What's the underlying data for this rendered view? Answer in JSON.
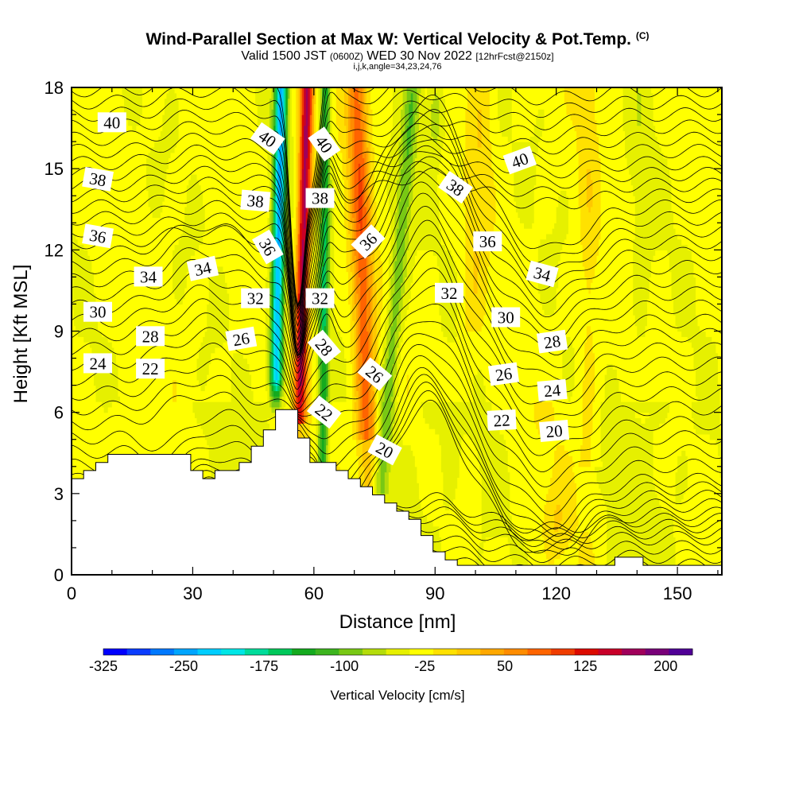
{
  "title": "Wind-Parallel Section at Max W: Vertical Velocity & Pot.Temp.",
  "title_tag": "(C)",
  "subtitle_pre": "Valid 1500 JST",
  "subtitle_utc": "(0600Z)",
  "subtitle_date": "WED 30 Nov 2022",
  "subtitle_fcst": "[12hrFcst@2150z]",
  "grid_info": "i,j,k,angle=34,23,24,76",
  "chart_data": {
    "type": "heatmap",
    "xlabel": "Distance [nm]",
    "ylabel": "Height [Kft MSL]",
    "xlim": [
      0,
      161
    ],
    "ylim": [
      0,
      18
    ],
    "x_ticks": [
      0,
      30,
      60,
      90,
      120,
      150
    ],
    "y_ticks": [
      0,
      3,
      6,
      9,
      12,
      15,
      18
    ],
    "colorbar": {
      "label": "Vertical Velocity [cm/s]",
      "min": -325,
      "max": 225,
      "step": 25,
      "tick_labels": [
        -325,
        -250,
        -175,
        -100,
        -25,
        50,
        125,
        200
      ],
      "colors": [
        "#0000ff",
        "#0a3cff",
        "#0078ff",
        "#00a5ff",
        "#00cdff",
        "#00e6e6",
        "#00dc9b",
        "#00c85a",
        "#14aa1e",
        "#3cb41e",
        "#78c814",
        "#b4dc0a",
        "#e6f000",
        "#ffff00",
        "#ffe100",
        "#ffc800",
        "#ffa800",
        "#ff8c00",
        "#ff6400",
        "#f03c00",
        "#dc0a00",
        "#c80028",
        "#a0005a",
        "#780078",
        "#500096"
      ]
    },
    "theta_labels": [
      {
        "x": 10,
        "y": 16.7,
        "v": "40",
        "rot": 0
      },
      {
        "x": 48.5,
        "y": 16.1,
        "v": "40",
        "rot": 35
      },
      {
        "x": 62.5,
        "y": 15.9,
        "v": "40",
        "rot": 55
      },
      {
        "x": 111,
        "y": 15.3,
        "v": "40",
        "rot": -20
      },
      {
        "x": 6.5,
        "y": 14.6,
        "v": "38",
        "rot": 10
      },
      {
        "x": 45.5,
        "y": 13.8,
        "v": "38",
        "rot": 5
      },
      {
        "x": 61.5,
        "y": 13.9,
        "v": "38",
        "rot": 0
      },
      {
        "x": 95,
        "y": 14.3,
        "v": "38",
        "rot": 35
      },
      {
        "x": 6.5,
        "y": 12.5,
        "v": "36",
        "rot": 10
      },
      {
        "x": 48.5,
        "y": 12.1,
        "v": "36",
        "rot": 60
      },
      {
        "x": 73.5,
        "y": 12.3,
        "v": "36",
        "rot": -45
      },
      {
        "x": 103,
        "y": 12.3,
        "v": "36",
        "rot": 0
      },
      {
        "x": 19,
        "y": 11.0,
        "v": "34",
        "rot": 0
      },
      {
        "x": 32.5,
        "y": 11.3,
        "v": "34",
        "rot": -12
      },
      {
        "x": 116.5,
        "y": 11.1,
        "v": "34",
        "rot": 15
      },
      {
        "x": 45.5,
        "y": 10.2,
        "v": "32",
        "rot": 0
      },
      {
        "x": 61.5,
        "y": 10.2,
        "v": "32",
        "rot": 0
      },
      {
        "x": 93.5,
        "y": 10.4,
        "v": "32",
        "rot": 0
      },
      {
        "x": 6.5,
        "y": 9.7,
        "v": "30",
        "rot": 0
      },
      {
        "x": 107.5,
        "y": 9.5,
        "v": "30",
        "rot": 0
      },
      {
        "x": 19.5,
        "y": 8.8,
        "v": "28",
        "rot": 0
      },
      {
        "x": 62.5,
        "y": 8.4,
        "v": "28",
        "rot": 50
      },
      {
        "x": 119,
        "y": 8.6,
        "v": "28",
        "rot": -8
      },
      {
        "x": 42,
        "y": 8.7,
        "v": "26",
        "rot": -10
      },
      {
        "x": 75,
        "y": 7.4,
        "v": "26",
        "rot": 40
      },
      {
        "x": 107,
        "y": 7.4,
        "v": "26",
        "rot": -8
      },
      {
        "x": 6.5,
        "y": 7.8,
        "v": "24",
        "rot": 0
      },
      {
        "x": 119,
        "y": 6.8,
        "v": "24",
        "rot": -5
      },
      {
        "x": 19.5,
        "y": 7.6,
        "v": "22",
        "rot": 0
      },
      {
        "x": 62.5,
        "y": 6.0,
        "v": "22",
        "rot": 38
      },
      {
        "x": 106.5,
        "y": 5.7,
        "v": "22",
        "rot": -3
      },
      {
        "x": 77.5,
        "y": 4.6,
        "v": "20",
        "rot": 28
      },
      {
        "x": 119.5,
        "y": 5.3,
        "v": "20",
        "rot": -5
      }
    ],
    "terrain": [
      [
        0,
        3.55
      ],
      [
        3,
        3.55
      ],
      [
        3,
        3.85
      ],
      [
        6,
        3.85
      ],
      [
        6,
        4.15
      ],
      [
        9,
        4.15
      ],
      [
        9,
        4.45
      ],
      [
        29.5,
        4.45
      ],
      [
        29.5,
        3.85
      ],
      [
        32.5,
        3.85
      ],
      [
        32.5,
        3.55
      ],
      [
        35.5,
        3.55
      ],
      [
        35.5,
        3.85
      ],
      [
        41.5,
        3.85
      ],
      [
        41.5,
        4.15
      ],
      [
        44.5,
        4.15
      ],
      [
        44.5,
        4.75
      ],
      [
        47.5,
        4.75
      ],
      [
        47.5,
        5.35
      ],
      [
        50.5,
        5.35
      ],
      [
        50.5,
        6.1
      ],
      [
        56,
        6.1
      ],
      [
        56,
        5.05
      ],
      [
        59,
        5.05
      ],
      [
        59,
        4.15
      ],
      [
        65.5,
        4.15
      ],
      [
        65.5,
        3.85
      ],
      [
        68.5,
        3.85
      ],
      [
        68.5,
        3.55
      ],
      [
        71.5,
        3.55
      ],
      [
        71.5,
        3.25
      ],
      [
        74.5,
        3.25
      ],
      [
        74.5,
        2.95
      ],
      [
        77.5,
        2.95
      ],
      [
        77.5,
        2.65
      ],
      [
        80.5,
        2.65
      ],
      [
        80.5,
        2.35
      ],
      [
        83.5,
        2.35
      ],
      [
        83.5,
        2.05
      ],
      [
        86.5,
        2.05
      ],
      [
        86.5,
        1.45
      ],
      [
        89.5,
        1.45
      ],
      [
        89.5,
        0.85
      ],
      [
        92.5,
        0.85
      ],
      [
        92.5,
        0.55
      ],
      [
        95.5,
        0.55
      ],
      [
        95.5,
        0.35
      ],
      [
        134.5,
        0.35
      ],
      [
        134.5,
        0.65
      ],
      [
        141.5,
        0.65
      ],
      [
        141.5,
        0.35
      ],
      [
        161,
        0.35
      ]
    ]
  }
}
